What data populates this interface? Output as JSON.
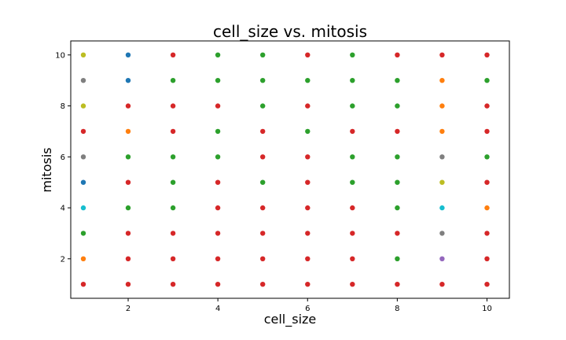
{
  "chart_data": {
    "type": "scatter",
    "title": "cell_size vs. mitosis",
    "xlabel": "cell_size",
    "ylabel": "mitosis",
    "xlim": [
      0.72,
      10.5
    ],
    "ylim": [
      0.45,
      10.55
    ],
    "xticks": [
      2,
      4,
      6,
      8,
      10
    ],
    "yticks": [
      2,
      4,
      6,
      8,
      10
    ],
    "grid": false,
    "colors": {
      "blue": "#1f77b4",
      "orange": "#ff7f0e",
      "green": "#2ca02c",
      "red": "#d62728",
      "purple": "#9467bd",
      "gray": "#7f7f7f",
      "olive": "#bcbd22",
      "cyan": "#17becf"
    },
    "points": [
      {
        "x": 1,
        "y": 10,
        "c": "olive"
      },
      {
        "x": 2,
        "y": 10,
        "c": "blue"
      },
      {
        "x": 3,
        "y": 10,
        "c": "red"
      },
      {
        "x": 4,
        "y": 10,
        "c": "green"
      },
      {
        "x": 5,
        "y": 10,
        "c": "green"
      },
      {
        "x": 6,
        "y": 10,
        "c": "red"
      },
      {
        "x": 7,
        "y": 10,
        "c": "green"
      },
      {
        "x": 8,
        "y": 10,
        "c": "red"
      },
      {
        "x": 9,
        "y": 10,
        "c": "red"
      },
      {
        "x": 10,
        "y": 10,
        "c": "red"
      },
      {
        "x": 1,
        "y": 9,
        "c": "gray"
      },
      {
        "x": 2,
        "y": 9,
        "c": "blue"
      },
      {
        "x": 3,
        "y": 9,
        "c": "green"
      },
      {
        "x": 4,
        "y": 9,
        "c": "green"
      },
      {
        "x": 5,
        "y": 9,
        "c": "green"
      },
      {
        "x": 6,
        "y": 9,
        "c": "green"
      },
      {
        "x": 7,
        "y": 9,
        "c": "green"
      },
      {
        "x": 8,
        "y": 9,
        "c": "green"
      },
      {
        "x": 9,
        "y": 9,
        "c": "orange"
      },
      {
        "x": 10,
        "y": 9,
        "c": "green"
      },
      {
        "x": 1,
        "y": 8,
        "c": "olive"
      },
      {
        "x": 2,
        "y": 8,
        "c": "red"
      },
      {
        "x": 3,
        "y": 8,
        "c": "red"
      },
      {
        "x": 4,
        "y": 8,
        "c": "red"
      },
      {
        "x": 5,
        "y": 8,
        "c": "green"
      },
      {
        "x": 6,
        "y": 8,
        "c": "red"
      },
      {
        "x": 7,
        "y": 8,
        "c": "green"
      },
      {
        "x": 8,
        "y": 8,
        "c": "green"
      },
      {
        "x": 9,
        "y": 8,
        "c": "orange"
      },
      {
        "x": 10,
        "y": 8,
        "c": "red"
      },
      {
        "x": 1,
        "y": 7,
        "c": "red"
      },
      {
        "x": 2,
        "y": 7,
        "c": "orange"
      },
      {
        "x": 3,
        "y": 7,
        "c": "red"
      },
      {
        "x": 4,
        "y": 7,
        "c": "green"
      },
      {
        "x": 5,
        "y": 7,
        "c": "red"
      },
      {
        "x": 6,
        "y": 7,
        "c": "green"
      },
      {
        "x": 7,
        "y": 7,
        "c": "red"
      },
      {
        "x": 8,
        "y": 7,
        "c": "red"
      },
      {
        "x": 9,
        "y": 7,
        "c": "orange"
      },
      {
        "x": 10,
        "y": 7,
        "c": "red"
      },
      {
        "x": 1,
        "y": 6,
        "c": "gray"
      },
      {
        "x": 2,
        "y": 6,
        "c": "green"
      },
      {
        "x": 3,
        "y": 6,
        "c": "green"
      },
      {
        "x": 4,
        "y": 6,
        "c": "green"
      },
      {
        "x": 5,
        "y": 6,
        "c": "red"
      },
      {
        "x": 6,
        "y": 6,
        "c": "red"
      },
      {
        "x": 7,
        "y": 6,
        "c": "green"
      },
      {
        "x": 8,
        "y": 6,
        "c": "green"
      },
      {
        "x": 9,
        "y": 6,
        "c": "gray"
      },
      {
        "x": 10,
        "y": 6,
        "c": "green"
      },
      {
        "x": 1,
        "y": 5,
        "c": "blue"
      },
      {
        "x": 2,
        "y": 5,
        "c": "red"
      },
      {
        "x": 3,
        "y": 5,
        "c": "green"
      },
      {
        "x": 4,
        "y": 5,
        "c": "red"
      },
      {
        "x": 5,
        "y": 5,
        "c": "green"
      },
      {
        "x": 6,
        "y": 5,
        "c": "red"
      },
      {
        "x": 7,
        "y": 5,
        "c": "green"
      },
      {
        "x": 8,
        "y": 5,
        "c": "green"
      },
      {
        "x": 9,
        "y": 5,
        "c": "olive"
      },
      {
        "x": 10,
        "y": 5,
        "c": "red"
      },
      {
        "x": 1,
        "y": 4,
        "c": "cyan"
      },
      {
        "x": 2,
        "y": 4,
        "c": "green"
      },
      {
        "x": 3,
        "y": 4,
        "c": "green"
      },
      {
        "x": 4,
        "y": 4,
        "c": "red"
      },
      {
        "x": 5,
        "y": 4,
        "c": "red"
      },
      {
        "x": 6,
        "y": 4,
        "c": "red"
      },
      {
        "x": 7,
        "y": 4,
        "c": "red"
      },
      {
        "x": 8,
        "y": 4,
        "c": "green"
      },
      {
        "x": 9,
        "y": 4,
        "c": "cyan"
      },
      {
        "x": 10,
        "y": 4,
        "c": "orange"
      },
      {
        "x": 1,
        "y": 3,
        "c": "green"
      },
      {
        "x": 2,
        "y": 3,
        "c": "red"
      },
      {
        "x": 3,
        "y": 3,
        "c": "red"
      },
      {
        "x": 4,
        "y": 3,
        "c": "red"
      },
      {
        "x": 5,
        "y": 3,
        "c": "red"
      },
      {
        "x": 6,
        "y": 3,
        "c": "red"
      },
      {
        "x": 7,
        "y": 3,
        "c": "red"
      },
      {
        "x": 8,
        "y": 3,
        "c": "red"
      },
      {
        "x": 9,
        "y": 3,
        "c": "gray"
      },
      {
        "x": 10,
        "y": 3,
        "c": "red"
      },
      {
        "x": 1,
        "y": 2,
        "c": "orange"
      },
      {
        "x": 2,
        "y": 2,
        "c": "red"
      },
      {
        "x": 3,
        "y": 2,
        "c": "red"
      },
      {
        "x": 4,
        "y": 2,
        "c": "red"
      },
      {
        "x": 5,
        "y": 2,
        "c": "red"
      },
      {
        "x": 6,
        "y": 2,
        "c": "red"
      },
      {
        "x": 7,
        "y": 2,
        "c": "red"
      },
      {
        "x": 8,
        "y": 2,
        "c": "green"
      },
      {
        "x": 9,
        "y": 2,
        "c": "purple"
      },
      {
        "x": 10,
        "y": 2,
        "c": "red"
      },
      {
        "x": 1,
        "y": 1,
        "c": "red"
      },
      {
        "x": 2,
        "y": 1,
        "c": "red"
      },
      {
        "x": 3,
        "y": 1,
        "c": "red"
      },
      {
        "x": 4,
        "y": 1,
        "c": "red"
      },
      {
        "x": 5,
        "y": 1,
        "c": "red"
      },
      {
        "x": 6,
        "y": 1,
        "c": "red"
      },
      {
        "x": 7,
        "y": 1,
        "c": "red"
      },
      {
        "x": 8,
        "y": 1,
        "c": "red"
      },
      {
        "x": 9,
        "y": 1,
        "c": "red"
      },
      {
        "x": 10,
        "y": 1,
        "c": "red"
      }
    ]
  }
}
